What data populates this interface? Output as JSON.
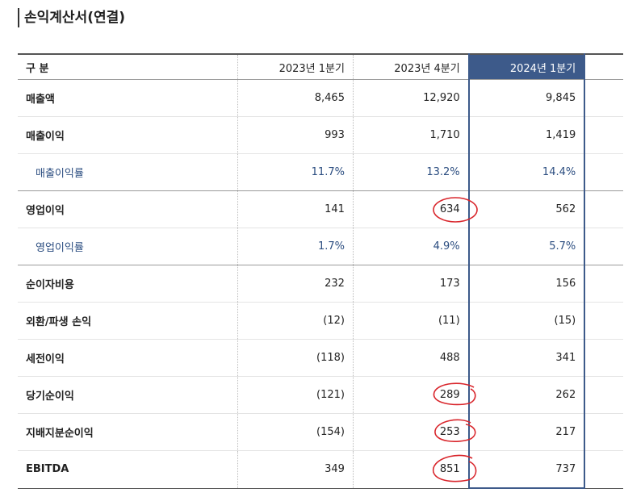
{
  "title": "손익계산서(연결)",
  "headers": {
    "label": "구 분",
    "col1": "2023년 1분기",
    "col2": "2023년 4분기",
    "col3": "2024년 1분기"
  },
  "rows": [
    {
      "label": "매출액",
      "v1": "8,465",
      "v2": "12,920",
      "v3": "9,845"
    },
    {
      "label": "매출이익",
      "v1": "993",
      "v2": "1,710",
      "v3": "1,419"
    },
    {
      "label": "매출이익률",
      "v1": "11.7%",
      "v2": "13.2%",
      "v3": "14.4%"
    },
    {
      "label": "영업이익",
      "v1": "141",
      "v2": "634",
      "v3": "562"
    },
    {
      "label": "영업이익률",
      "v1": "1.7%",
      "v2": "4.9%",
      "v3": "5.7%"
    },
    {
      "label": "순이자비용",
      "v1": "232",
      "v2": "173",
      "v3": "156"
    },
    {
      "label": "외환/파생 손익",
      "v1": "(12)",
      "v2": "(11)",
      "v3": "(15)"
    },
    {
      "label": "세전이익",
      "v1": "(118)",
      "v2": "488",
      "v3": "341"
    },
    {
      "label": "당기순이익",
      "v1": "(121)",
      "v2": "289",
      "v3": "262"
    },
    {
      "label": "지배지분순이익",
      "v1": "(154)",
      "v2": "253",
      "v3": "217"
    },
    {
      "label": "EBITDA",
      "v1": "349",
      "v2": "851",
      "v3": "737"
    }
  ],
  "colors": {
    "accent": "#3d5a8a",
    "sub_text": "#2b4d80",
    "annotation": "#d9262c"
  }
}
